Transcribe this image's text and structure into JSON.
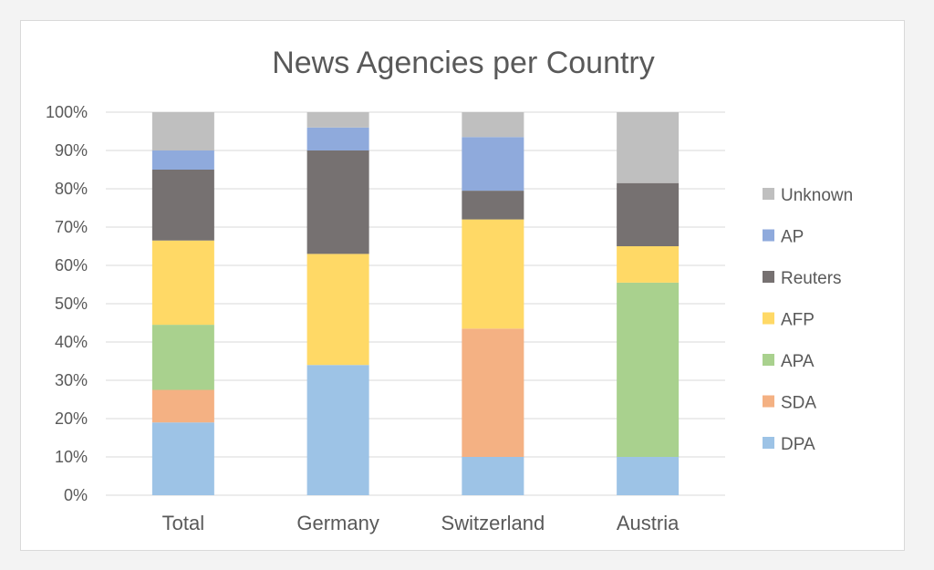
{
  "chart_data": {
    "type": "bar",
    "stacked": true,
    "title": "News Agencies per Country",
    "xlabel": "",
    "ylabel": "",
    "ylim": [
      0,
      100
    ],
    "y_ticks": [
      "0%",
      "10%",
      "20%",
      "30%",
      "40%",
      "50%",
      "60%",
      "70%",
      "80%",
      "90%",
      "100%"
    ],
    "grid": true,
    "legend_position": "right",
    "categories": [
      "Total",
      "Germany",
      "Switzerland",
      "Austria"
    ],
    "series": [
      {
        "name": "DPA",
        "color": "#9dc3e6",
        "values": [
          19,
          34,
          10,
          10
        ]
      },
      {
        "name": "SDA",
        "color": "#f4b183",
        "values": [
          8.5,
          0,
          33.5,
          0
        ]
      },
      {
        "name": "APA",
        "color": "#a9d18e",
        "values": [
          17,
          0,
          0,
          45.5
        ]
      },
      {
        "name": "AFP",
        "color": "#ffd966",
        "values": [
          22,
          29,
          28.5,
          9.5
        ]
      },
      {
        "name": "Reuters",
        "color": "#767171",
        "values": [
          18.5,
          27,
          7.5,
          16.5
        ]
      },
      {
        "name": "AP",
        "color": "#8faadc",
        "values": [
          5,
          6,
          14,
          0
        ]
      },
      {
        "name": "Unknown",
        "color": "#bfbfbf",
        "values": [
          10,
          4,
          6.5,
          18.5
        ]
      }
    ]
  }
}
